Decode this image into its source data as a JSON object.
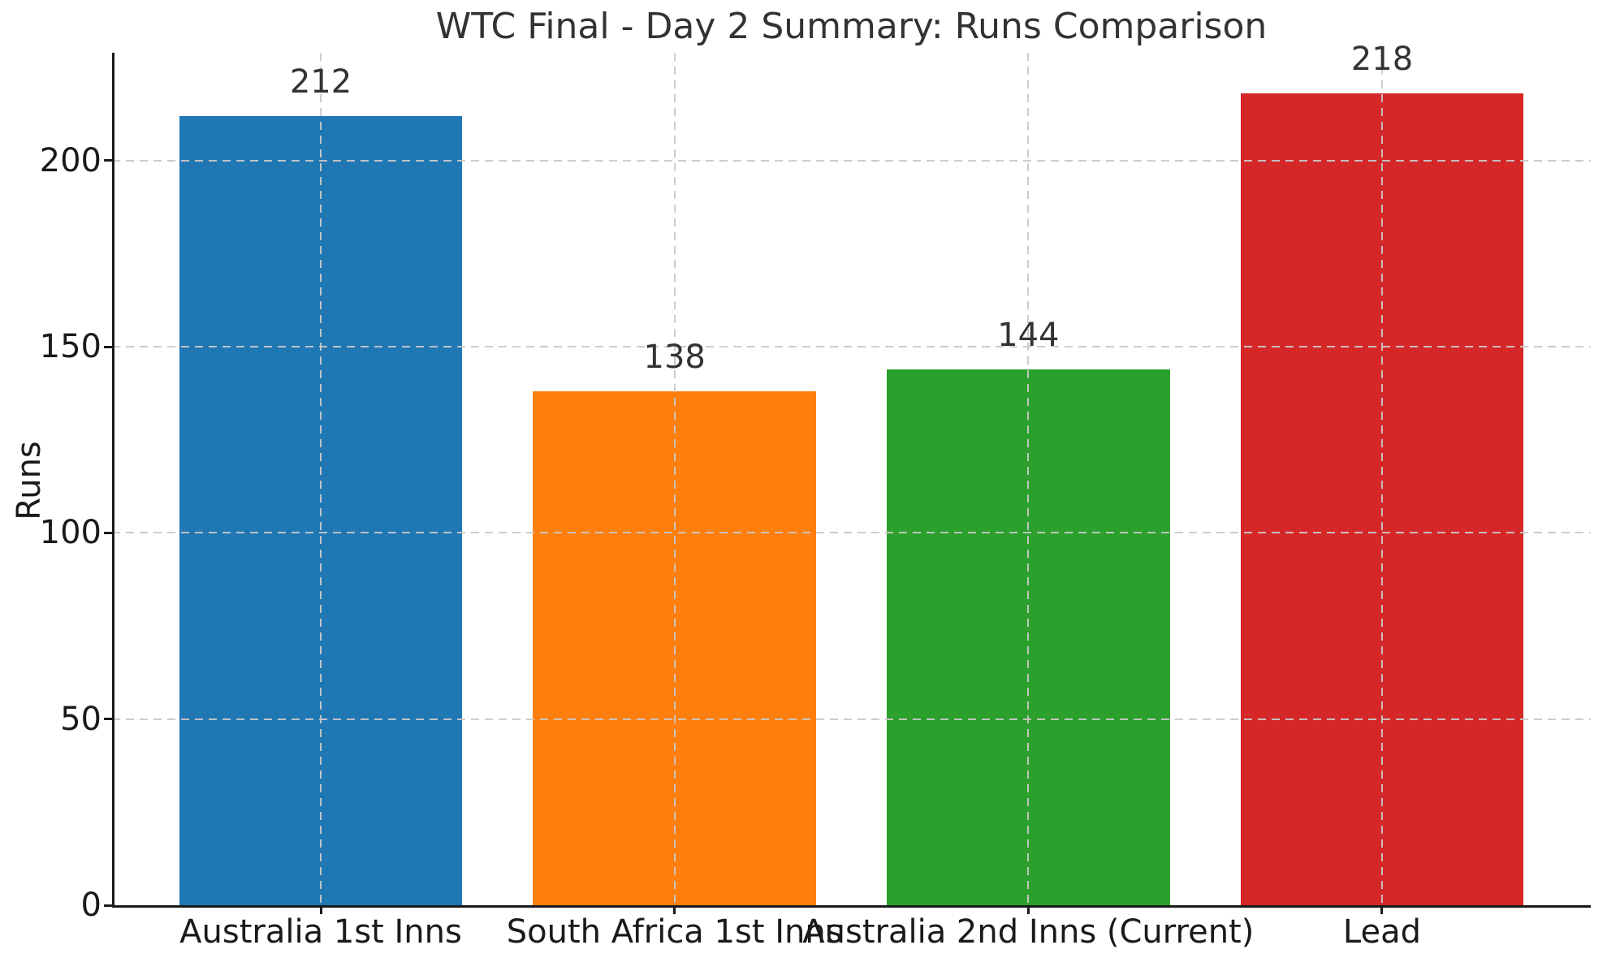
{
  "chart_data": {
    "type": "bar",
    "title": "WTC Final - Day 2 Summary: Runs Comparison",
    "ylabel": "Runs",
    "xlabel": "",
    "categories": [
      "Australia 1st Inns",
      "South Africa 1st Inns",
      "Australia 2nd Inns (Current)",
      "Lead"
    ],
    "values": [
      212,
      138,
      144,
      218
    ],
    "value_labels": [
      "212",
      "138",
      "144",
      "218"
    ],
    "bar_colors": [
      "#1f77b4",
      "#ff7f0e",
      "#2ca02c",
      "#d62728"
    ],
    "yticks": [
      0,
      50,
      100,
      150,
      200
    ],
    "ytick_labels": [
      "0",
      "50",
      "100",
      "150",
      "200"
    ],
    "ylim": [
      0,
      229
    ],
    "xlim": [
      -0.59,
      3.59
    ],
    "bar_width": 0.8,
    "grid": "dashed",
    "grid_on": true,
    "grid_above_bars": true,
    "legend": "none",
    "grid_color": "#c9c9c9",
    "spine_color": "#1a1a1a",
    "tick_label_color": "#1a1a1a",
    "title_color": "#333333",
    "value_label_color": "#333333",
    "background_color": "#ffffff"
  }
}
